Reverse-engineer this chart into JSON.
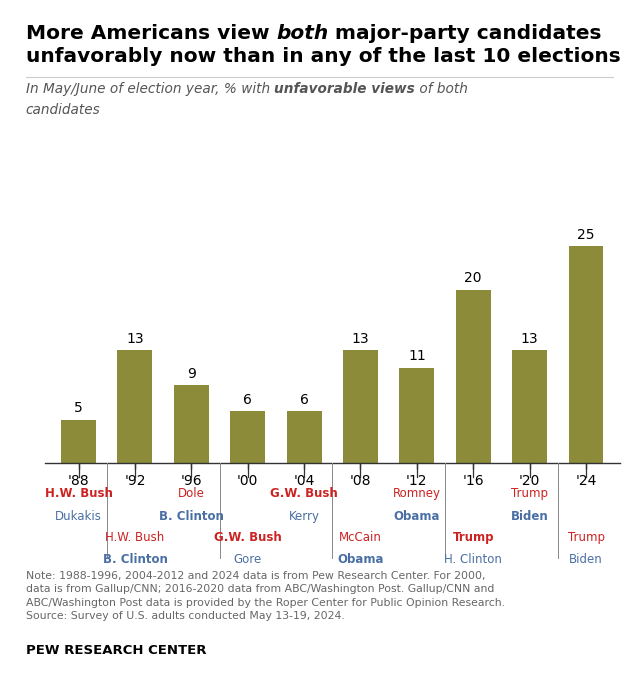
{
  "years": [
    "'88",
    "'92",
    "'96",
    "'00",
    "'04",
    "'08",
    "'12",
    "'16",
    "'20",
    "'24"
  ],
  "values": [
    5,
    13,
    9,
    6,
    6,
    13,
    11,
    20,
    13,
    25
  ],
  "bar_color": "#8B8B3A",
  "background_color": "#FFFFFF",
  "ylim": [
    0,
    30
  ],
  "figsize": [
    6.39,
    6.76
  ],
  "dpi": 100,
  "note": "Note: 1988-1996, 2004-2012 and 2024 data is from Pew Research Center. For 2000,\ndata is from Gallup/CNN; 2016-2020 data from ABC/Washington Post. Gallup/CNN and\nABC/Washington Post data is provided by the Roper Center for Public Opinion Research.\nSource: Survey of U.S. adults conducted May 13-19, 2024.",
  "source_label": "PEW RESEARCH CENTER",
  "top_labels": [
    {
      "idx": 0,
      "line1": "H.W. Bush",
      "line1_color": "#CC2222",
      "line1_bold": true,
      "line2": "Dukakis",
      "line2_color": "#4A6FA5",
      "line2_bold": false
    },
    {
      "idx": 2,
      "line1": "Dole",
      "line1_color": "#CC2222",
      "line1_bold": false,
      "line2": "B. Clinton",
      "line2_color": "#4A6FA5",
      "line2_bold": true
    },
    {
      "idx": 4,
      "line1": "G.W. Bush",
      "line1_color": "#CC2222",
      "line1_bold": true,
      "line2": "Kerry",
      "line2_color": "#4A6FA5",
      "line2_bold": false
    },
    {
      "idx": 6,
      "line1": "Romney",
      "line1_color": "#CC2222",
      "line1_bold": false,
      "line2": "Obama",
      "line2_color": "#4A6FA5",
      "line2_bold": true
    },
    {
      "idx": 8,
      "line1": "Trump",
      "line1_color": "#CC2222",
      "line1_bold": false,
      "line2": "Biden",
      "line2_color": "#4A6FA5",
      "line2_bold": true
    }
  ],
  "bot_labels": [
    {
      "idx": 1,
      "line1": "H.W. Bush",
      "line1_color": "#CC2222",
      "line1_bold": false,
      "line2": "B. Clinton",
      "line2_color": "#4A6FA5",
      "line2_bold": true
    },
    {
      "idx": 3,
      "line1": "G.W. Bush",
      "line1_color": "#CC2222",
      "line1_bold": true,
      "line2": "Gore",
      "line2_color": "#4A6FA5",
      "line2_bold": false
    },
    {
      "idx": 5,
      "line1": "McCain",
      "line1_color": "#CC2222",
      "line1_bold": false,
      "line2": "Obama",
      "line2_color": "#4A6FA5",
      "line2_bold": true
    },
    {
      "idx": 7,
      "line1": "Trump",
      "line1_color": "#CC2222",
      "line1_bold": true,
      "line2": "H. Clinton",
      "line2_color": "#4A6FA5",
      "line2_bold": false
    },
    {
      "idx": 9,
      "line1": "Trump",
      "line1_color": "#CC2222",
      "line1_bold": false,
      "line2": "Biden",
      "line2_color": "#4A6FA5",
      "line2_bold": false
    }
  ]
}
